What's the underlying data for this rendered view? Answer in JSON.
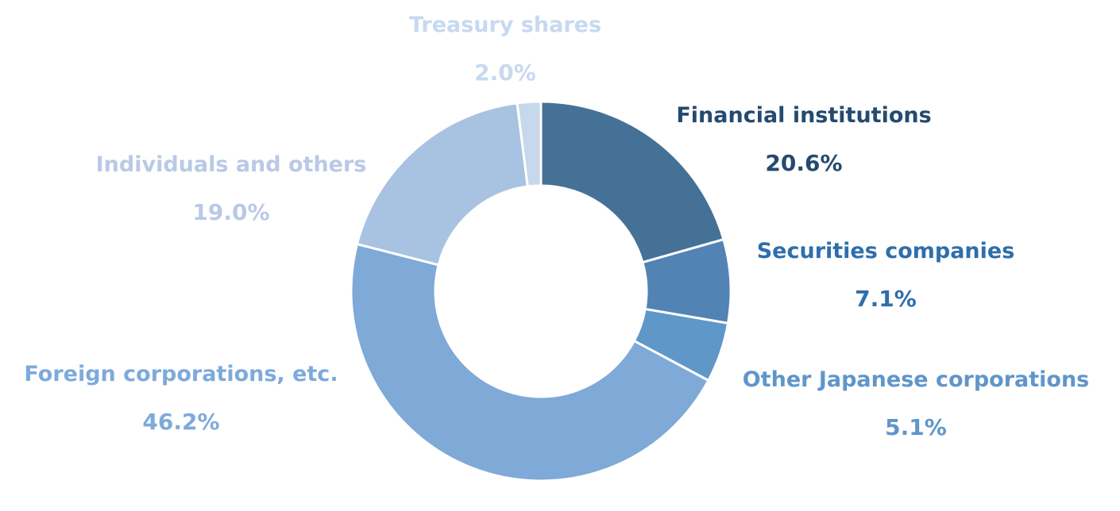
{
  "chart_data": {
    "type": "pie",
    "donut": true,
    "start": "12 o'clock",
    "direction": "clockwise",
    "categories": [
      "Financial institutions",
      "Securities companies",
      "Other Japanese corporations",
      "Foreign corporations, etc.",
      "Individuals and others",
      "Treasury shares"
    ],
    "values": [
      20.6,
      7.1,
      5.1,
      46.2,
      19.0,
      2.0
    ],
    "labels": [
      "20.6%",
      "7.1%",
      "5.1%",
      "46.2%",
      "19.0%",
      "2.0%"
    ],
    "colors": [
      "#467197",
      "#5183b4",
      "#6097c9",
      "#7fa9d6",
      "#a8c2e2",
      "#c7d7ec"
    ],
    "label_colors": [
      "#244a70",
      "#2f6eac",
      "#5f96ca",
      "#7eaadb",
      "#b9c9e6",
      "#c6d9ef"
    ],
    "legend": "none"
  }
}
